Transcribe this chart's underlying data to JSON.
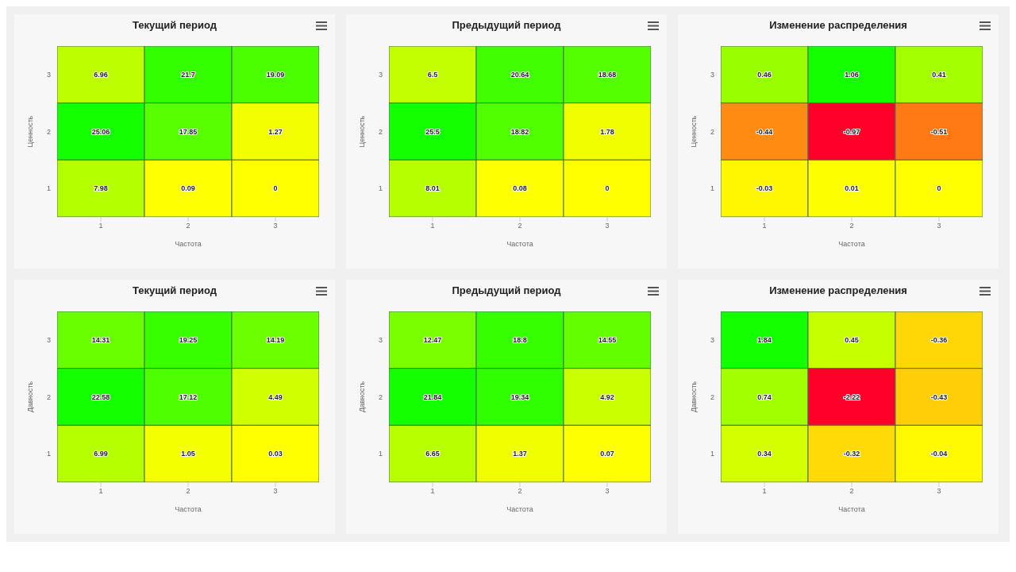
{
  "chart_data": [
    {
      "type": "heatmap",
      "title": "Текущий период",
      "xlabel": "Частота",
      "ylabel": "Ценность",
      "categories": [
        "1",
        "2",
        "3"
      ],
      "y_categories": [
        "3",
        "2",
        "1"
      ],
      "cells": [
        [
          6.96,
          21.7,
          19.09
        ],
        [
          25.06,
          17.85,
          1.27
        ],
        [
          7.98,
          0.09,
          0
        ]
      ],
      "data_labels": true
    },
    {
      "type": "heatmap",
      "title": "Предыдущий период",
      "xlabel": "Частота",
      "ylabel": "Ценность",
      "categories": [
        "1",
        "2",
        "3"
      ],
      "y_categories": [
        "3",
        "2",
        "1"
      ],
      "cells": [
        [
          6.5,
          20.64,
          18.68
        ],
        [
          25.5,
          18.82,
          1.78
        ],
        [
          8.01,
          0.08,
          0
        ]
      ],
      "data_labels": true
    },
    {
      "type": "heatmap",
      "title": "Изменение распределения",
      "xlabel": "Частота",
      "ylabel": "Ценность",
      "categories": [
        "1",
        "2",
        "3"
      ],
      "y_categories": [
        "3",
        "2",
        "1"
      ],
      "cells": [
        [
          0.46,
          1.06,
          0.41
        ],
        [
          -0.44,
          -0.97,
          -0.51
        ],
        [
          -0.03,
          0.01,
          0
        ]
      ],
      "data_labels": true
    },
    {
      "type": "heatmap",
      "title": "Текущий период",
      "xlabel": "Частота",
      "ylabel": "Давность",
      "categories": [
        "1",
        "2",
        "3"
      ],
      "y_categories": [
        "3",
        "2",
        "1"
      ],
      "cells": [
        [
          14.31,
          19.25,
          14.19
        ],
        [
          22.58,
          17.12,
          4.49
        ],
        [
          6.99,
          1.05,
          0.03
        ]
      ],
      "data_labels": true
    },
    {
      "type": "heatmap",
      "title": "Предыдущий период",
      "xlabel": "Частота",
      "ylabel": "Давность",
      "categories": [
        "1",
        "2",
        "3"
      ],
      "y_categories": [
        "3",
        "2",
        "1"
      ],
      "cells": [
        [
          12.47,
          18.8,
          14.55
        ],
        [
          21.84,
          19.34,
          4.92
        ],
        [
          6.65,
          1.37,
          0.07
        ]
      ],
      "data_labels": true
    },
    {
      "type": "heatmap",
      "title": "Изменение распределения",
      "xlabel": "Частота",
      "ylabel": "Давность",
      "categories": [
        "1",
        "2",
        "3"
      ],
      "y_categories": [
        "3",
        "2",
        "1"
      ],
      "cells": [
        [
          1.84,
          0.45,
          -0.36
        ],
        [
          0.74,
          -2.22,
          -0.43
        ],
        [
          0.34,
          -0.32,
          -0.04
        ]
      ],
      "data_labels": true
    }
  ]
}
